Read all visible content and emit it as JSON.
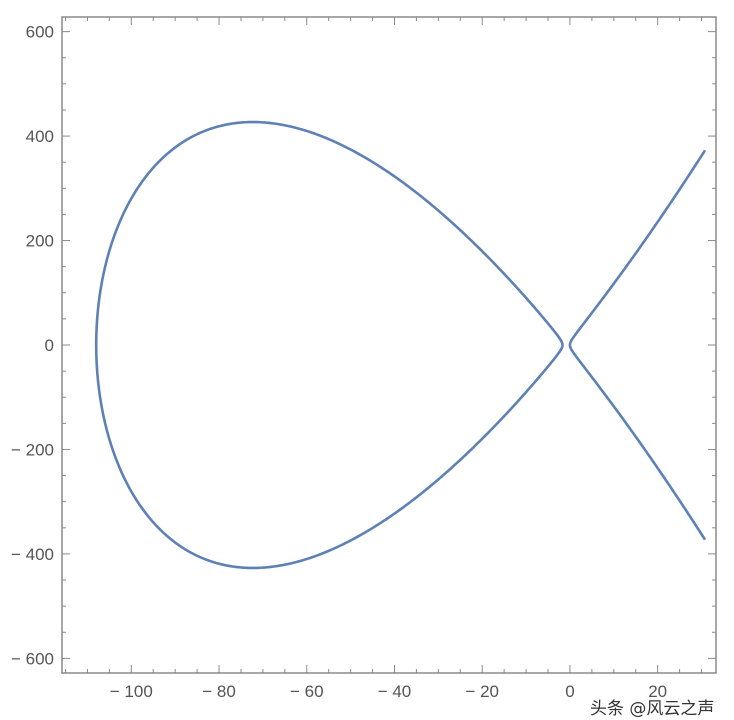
{
  "chart_data": {
    "type": "line",
    "title": "",
    "xlabel": "",
    "ylabel": "",
    "xlim": [
      -115.8,
      33.3
    ],
    "ylim": [
      -628,
      628
    ],
    "x_ticks": [
      -100,
      -80,
      -60,
      -40,
      -20,
      0,
      20
    ],
    "x_tick_labels": [
      "− 100",
      "− 80",
      "− 60",
      "− 40",
      "− 20",
      "0",
      "20"
    ],
    "x_minor_step": 5,
    "y_ticks": [
      600,
      400,
      200,
      0,
      -200,
      -400,
      -600
    ],
    "y_tick_labels": [
      "600",
      "400",
      "200",
      "0",
      "− 200",
      "− 400",
      "− 600"
    ],
    "y_minor_step": 50,
    "grid": false,
    "curve": {
      "description_equation": "y^2 = x (x + 1.7) (x + 108)",
      "roots": [
        -108,
        -1.7,
        0
      ],
      "x_max": 30.8,
      "color": "#5E81B5",
      "key_points": [
        {
          "x": -108,
          "y": 0
        },
        {
          "x": -72,
          "y": 420
        },
        {
          "x": -72,
          "y": -420
        },
        {
          "x": -1.7,
          "y": 0
        },
        {
          "x": 0,
          "y": 0
        },
        {
          "x": 30.8,
          "y": 365
        },
        {
          "x": 30.8,
          "y": -365
        }
      ]
    }
  },
  "watermark": "头条 @风云之声",
  "colors": {
    "frame": "#8a8a8a",
    "tick_label": "#555555",
    "curve": "#5E81B5"
  }
}
